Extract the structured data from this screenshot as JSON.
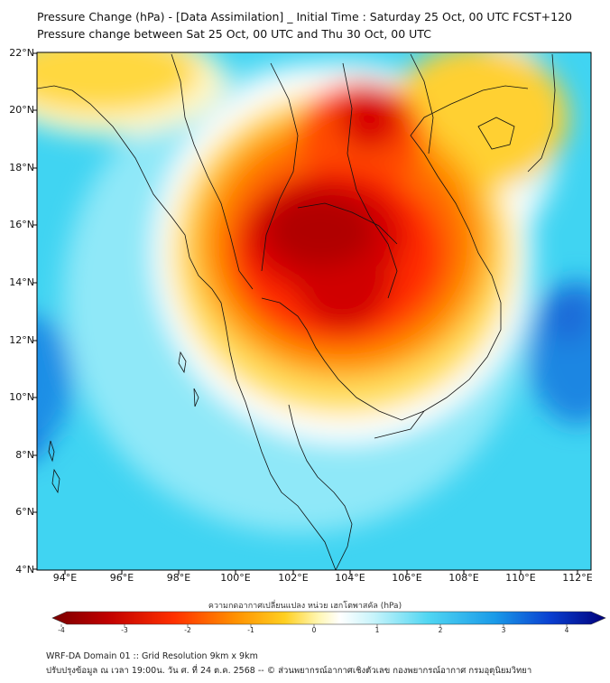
{
  "title_line1": "Pressure Change (hPa) - [Data Assimilation] _ Initial Time : Saturday 25 Oct, 00 UTC FCST+120",
  "title_line2": "Pressure change between Sat 25 Oct, 00 UTC and Thu 30 Oct, 00 UTC",
  "lat_labels": [
    "22°N",
    "20°N",
    "18°N",
    "16°N",
    "14°N",
    "12°N",
    "10°N",
    "8°N",
    "6°N",
    "4°N"
  ],
  "lon_labels": [
    "94°E",
    "96°E",
    "98°E",
    "100°E",
    "102°E",
    "104°E",
    "106°E",
    "108°E",
    "110°E",
    "112°E"
  ],
  "colorbar": {
    "title": "ความกดอากาศเปลี่ยนแปลง หน่วย เฮกโตพาสคัล (hPa)",
    "ticks": [
      "-4",
      "-3",
      "-2",
      "-1",
      "0",
      "1",
      "2",
      "3",
      "4"
    ],
    "colors": [
      "#7a0000",
      "#d40000",
      "#ff4000",
      "#ff9a00",
      "#ffd200",
      "#fff4a0",
      "#ffffff",
      "#a8eef8",
      "#3fd2f0",
      "#1a8ee8",
      "#0a40d0",
      "#00007a"
    ]
  },
  "footer_line1": "WRF-DA Domain 01 :: Grid Resolution 9km x 9km",
  "footer_line2": "ปรับปรุงข้อมูล ณ เวลา 19:00น. วัน ศ. ที่ 24 ต.ค. 2568 -- © ส่วนพยากรณ์อากาศเชิงตัวเลข กองพยากรณ์อากาศ กรมอุตุนิยมวิทยา"
}
